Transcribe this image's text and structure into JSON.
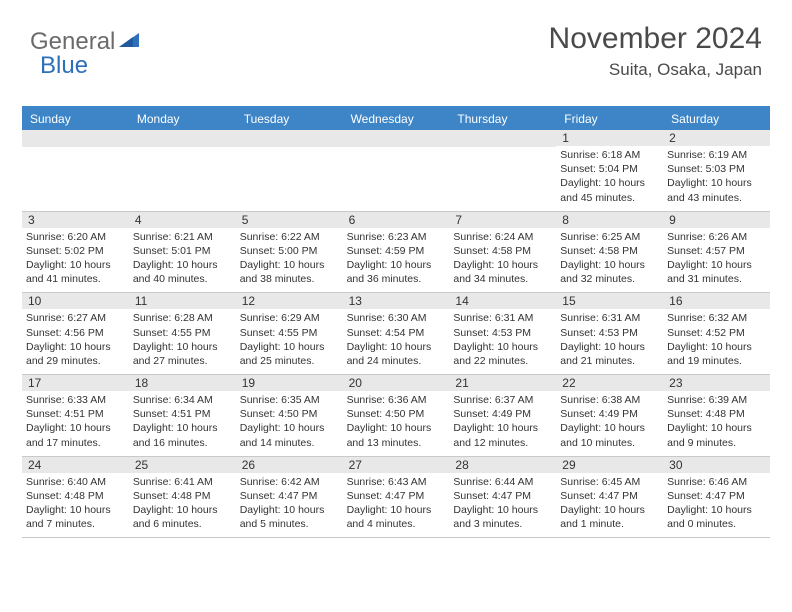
{
  "logo": {
    "text1": "General",
    "text2": "Blue"
  },
  "header": {
    "month_title": "November 2024",
    "location": "Suita, Osaka, Japan"
  },
  "colors": {
    "header_bar": "#3d85c6",
    "header_text": "#ffffff",
    "daynum_bg": "#e8e8e8",
    "border": "#c9c9c9",
    "logo_blue": "#2d6fb8",
    "logo_gray": "#6b6b6b",
    "text": "#333333",
    "bg": "#ffffff"
  },
  "day_names": [
    "Sunday",
    "Monday",
    "Tuesday",
    "Wednesday",
    "Thursday",
    "Friday",
    "Saturday"
  ],
  "weeks": [
    [
      {
        "num": "",
        "sunrise": "",
        "sunset": "",
        "daylight": ""
      },
      {
        "num": "",
        "sunrise": "",
        "sunset": "",
        "daylight": ""
      },
      {
        "num": "",
        "sunrise": "",
        "sunset": "",
        "daylight": ""
      },
      {
        "num": "",
        "sunrise": "",
        "sunset": "",
        "daylight": ""
      },
      {
        "num": "",
        "sunrise": "",
        "sunset": "",
        "daylight": ""
      },
      {
        "num": "1",
        "sunrise": "Sunrise: 6:18 AM",
        "sunset": "Sunset: 5:04 PM",
        "daylight": "Daylight: 10 hours and 45 minutes."
      },
      {
        "num": "2",
        "sunrise": "Sunrise: 6:19 AM",
        "sunset": "Sunset: 5:03 PM",
        "daylight": "Daylight: 10 hours and 43 minutes."
      }
    ],
    [
      {
        "num": "3",
        "sunrise": "Sunrise: 6:20 AM",
        "sunset": "Sunset: 5:02 PM",
        "daylight": "Daylight: 10 hours and 41 minutes."
      },
      {
        "num": "4",
        "sunrise": "Sunrise: 6:21 AM",
        "sunset": "Sunset: 5:01 PM",
        "daylight": "Daylight: 10 hours and 40 minutes."
      },
      {
        "num": "5",
        "sunrise": "Sunrise: 6:22 AM",
        "sunset": "Sunset: 5:00 PM",
        "daylight": "Daylight: 10 hours and 38 minutes."
      },
      {
        "num": "6",
        "sunrise": "Sunrise: 6:23 AM",
        "sunset": "Sunset: 4:59 PM",
        "daylight": "Daylight: 10 hours and 36 minutes."
      },
      {
        "num": "7",
        "sunrise": "Sunrise: 6:24 AM",
        "sunset": "Sunset: 4:58 PM",
        "daylight": "Daylight: 10 hours and 34 minutes."
      },
      {
        "num": "8",
        "sunrise": "Sunrise: 6:25 AM",
        "sunset": "Sunset: 4:58 PM",
        "daylight": "Daylight: 10 hours and 32 minutes."
      },
      {
        "num": "9",
        "sunrise": "Sunrise: 6:26 AM",
        "sunset": "Sunset: 4:57 PM",
        "daylight": "Daylight: 10 hours and 31 minutes."
      }
    ],
    [
      {
        "num": "10",
        "sunrise": "Sunrise: 6:27 AM",
        "sunset": "Sunset: 4:56 PM",
        "daylight": "Daylight: 10 hours and 29 minutes."
      },
      {
        "num": "11",
        "sunrise": "Sunrise: 6:28 AM",
        "sunset": "Sunset: 4:55 PM",
        "daylight": "Daylight: 10 hours and 27 minutes."
      },
      {
        "num": "12",
        "sunrise": "Sunrise: 6:29 AM",
        "sunset": "Sunset: 4:55 PM",
        "daylight": "Daylight: 10 hours and 25 minutes."
      },
      {
        "num": "13",
        "sunrise": "Sunrise: 6:30 AM",
        "sunset": "Sunset: 4:54 PM",
        "daylight": "Daylight: 10 hours and 24 minutes."
      },
      {
        "num": "14",
        "sunrise": "Sunrise: 6:31 AM",
        "sunset": "Sunset: 4:53 PM",
        "daylight": "Daylight: 10 hours and 22 minutes."
      },
      {
        "num": "15",
        "sunrise": "Sunrise: 6:31 AM",
        "sunset": "Sunset: 4:53 PM",
        "daylight": "Daylight: 10 hours and 21 minutes."
      },
      {
        "num": "16",
        "sunrise": "Sunrise: 6:32 AM",
        "sunset": "Sunset: 4:52 PM",
        "daylight": "Daylight: 10 hours and 19 minutes."
      }
    ],
    [
      {
        "num": "17",
        "sunrise": "Sunrise: 6:33 AM",
        "sunset": "Sunset: 4:51 PM",
        "daylight": "Daylight: 10 hours and 17 minutes."
      },
      {
        "num": "18",
        "sunrise": "Sunrise: 6:34 AM",
        "sunset": "Sunset: 4:51 PM",
        "daylight": "Daylight: 10 hours and 16 minutes."
      },
      {
        "num": "19",
        "sunrise": "Sunrise: 6:35 AM",
        "sunset": "Sunset: 4:50 PM",
        "daylight": "Daylight: 10 hours and 14 minutes."
      },
      {
        "num": "20",
        "sunrise": "Sunrise: 6:36 AM",
        "sunset": "Sunset: 4:50 PM",
        "daylight": "Daylight: 10 hours and 13 minutes."
      },
      {
        "num": "21",
        "sunrise": "Sunrise: 6:37 AM",
        "sunset": "Sunset: 4:49 PM",
        "daylight": "Daylight: 10 hours and 12 minutes."
      },
      {
        "num": "22",
        "sunrise": "Sunrise: 6:38 AM",
        "sunset": "Sunset: 4:49 PM",
        "daylight": "Daylight: 10 hours and 10 minutes."
      },
      {
        "num": "23",
        "sunrise": "Sunrise: 6:39 AM",
        "sunset": "Sunset: 4:48 PM",
        "daylight": "Daylight: 10 hours and 9 minutes."
      }
    ],
    [
      {
        "num": "24",
        "sunrise": "Sunrise: 6:40 AM",
        "sunset": "Sunset: 4:48 PM",
        "daylight": "Daylight: 10 hours and 7 minutes."
      },
      {
        "num": "25",
        "sunrise": "Sunrise: 6:41 AM",
        "sunset": "Sunset: 4:48 PM",
        "daylight": "Daylight: 10 hours and 6 minutes."
      },
      {
        "num": "26",
        "sunrise": "Sunrise: 6:42 AM",
        "sunset": "Sunset: 4:47 PM",
        "daylight": "Daylight: 10 hours and 5 minutes."
      },
      {
        "num": "27",
        "sunrise": "Sunrise: 6:43 AM",
        "sunset": "Sunset: 4:47 PM",
        "daylight": "Daylight: 10 hours and 4 minutes."
      },
      {
        "num": "28",
        "sunrise": "Sunrise: 6:44 AM",
        "sunset": "Sunset: 4:47 PM",
        "daylight": "Daylight: 10 hours and 3 minutes."
      },
      {
        "num": "29",
        "sunrise": "Sunrise: 6:45 AM",
        "sunset": "Sunset: 4:47 PM",
        "daylight": "Daylight: 10 hours and 1 minute."
      },
      {
        "num": "30",
        "sunrise": "Sunrise: 6:46 AM",
        "sunset": "Sunset: 4:47 PM",
        "daylight": "Daylight: 10 hours and 0 minutes."
      }
    ]
  ]
}
